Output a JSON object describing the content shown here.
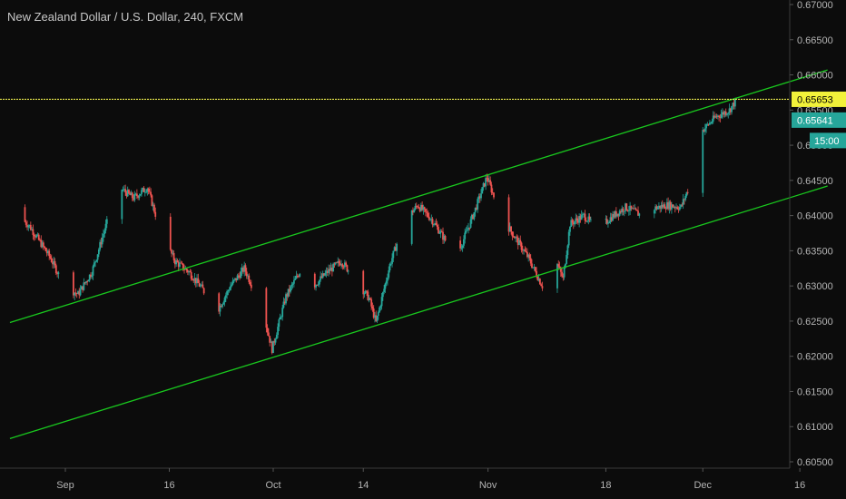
{
  "chart_data": {
    "type": "candlestick",
    "title": "New Zealand Dollar / U.S. Dollar, 240, FXCM",
    "xlabel": "",
    "ylabel": "",
    "ylim": [
      0.6045,
      0.671
    ],
    "y_ticks": [
      "0.67000",
      "0.66500",
      "0.66000",
      "0.65500",
      "0.65000",
      "0.64500",
      "0.64000",
      "0.63500",
      "0.63000",
      "0.62500",
      "0.62000",
      "0.61500",
      "0.61000",
      "0.60500"
    ],
    "x_ticks": [
      "Sep",
      "16",
      "Oct",
      "14",
      "Nov",
      "18",
      "Dec",
      "16"
    ],
    "grid": false,
    "colors": {
      "up": "#26a69a",
      "down": "#ef5350",
      "channel": "#19c81e",
      "level": "#e6e64b",
      "price_badge": "#f2f23a",
      "last_badge": "#26a69a"
    },
    "horizontal_level": 0.65653,
    "labels": {
      "level_price": "0.65653",
      "last_price": "0.65641",
      "countdown": "15:00"
    },
    "channel_upper": {
      "from": {
        "x": "Aug 24",
        "y": 0.6248
      },
      "to": {
        "x": "Dec 20",
        "y": 0.6607
      }
    },
    "channel_lower": {
      "from": {
        "x": "Aug 24",
        "y": 0.6083
      },
      "to": {
        "x": "Dec 20",
        "y": 0.6442
      }
    },
    "price_path": [
      [
        "Aug 24",
        0.6412
      ],
      [
        "Aug 27",
        0.6385
      ],
      [
        "Aug 30",
        0.634
      ],
      [
        "Sep 1",
        0.63
      ],
      [
        "Sep 3",
        0.6288
      ],
      [
        "Sep 5",
        0.632
      ],
      [
        "Sep 7",
        0.6385
      ],
      [
        "Sep 9",
        0.644
      ],
      [
        "Sep 11",
        0.6425
      ],
      [
        "Sep 13",
        0.644
      ],
      [
        "Sep 15",
        0.6375
      ],
      [
        "Sep 17",
        0.6335
      ],
      [
        "Sep 19",
        0.632
      ],
      [
        "Sep 21",
        0.6295
      ],
      [
        "Sep 23",
        0.6262
      ],
      [
        "Sep 25",
        0.63
      ],
      [
        "Sep 27",
        0.6325
      ],
      [
        "Sep 29",
        0.628
      ],
      [
        "Sep 30",
        0.625
      ],
      [
        "Oct 1",
        0.621
      ],
      [
        "Oct 3",
        0.6285
      ],
      [
        "Oct 5",
        0.632
      ],
      [
        "Oct 7",
        0.63
      ],
      [
        "Oct 9",
        0.632
      ],
      [
        "Oct 11",
        0.6335
      ],
      [
        "Oct 13",
        0.631
      ],
      [
        "Oct 15",
        0.6282
      ],
      [
        "Oct 16",
        0.6248
      ],
      [
        "Oct 18",
        0.633
      ],
      [
        "Oct 20",
        0.639
      ],
      [
        "Oct 22",
        0.6415
      ],
      [
        "Oct 24",
        0.6395
      ],
      [
        "Oct 26",
        0.6365
      ],
      [
        "Oct 28",
        0.635
      ],
      [
        "Oct 30",
        0.64
      ],
      [
        "Nov 1",
        0.6455
      ],
      [
        "Nov 3",
        0.64
      ],
      [
        "Nov 5",
        0.637
      ],
      [
        "Nov 7",
        0.634
      ],
      [
        "Nov 9",
        0.63
      ],
      [
        "Nov 11",
        0.6335
      ],
      [
        "Nov 12",
        0.631
      ],
      [
        "Nov 13",
        0.6388
      ],
      [
        "Nov 15",
        0.64
      ],
      [
        "Nov 17",
        0.638
      ],
      [
        "Nov 19",
        0.6398
      ],
      [
        "Nov 21",
        0.6412
      ],
      [
        "Nov 23",
        0.6402
      ],
      [
        "Nov 25",
        0.641
      ],
      [
        "Nov 27",
        0.6415
      ],
      [
        "Nov 29",
        0.6412
      ],
      [
        "Dec 1",
        0.646
      ],
      [
        "Dec 2",
        0.652
      ],
      [
        "Dec 4",
        0.654
      ],
      [
        "Dec 6",
        0.655
      ],
      [
        "Dec 7",
        0.6564
      ]
    ]
  }
}
